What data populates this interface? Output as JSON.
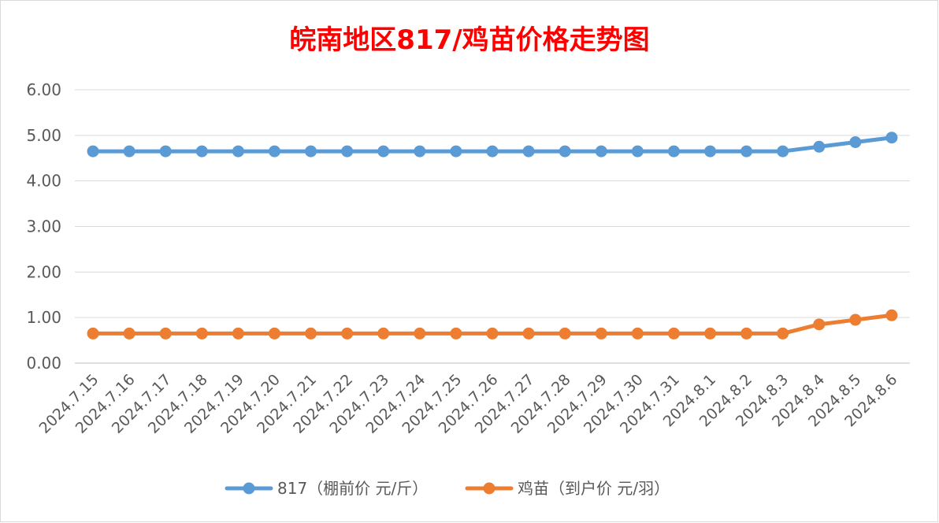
{
  "chart_data": {
    "type": "line",
    "title": "皖南地区817/鸡苗价格走势图",
    "categories": [
      "2024.7.15",
      "2024.7.16",
      "2024.7.17",
      "2024.7.18",
      "2024.7.19",
      "2024.7.20",
      "2024.7.21",
      "2024.7.22",
      "2024.7.23",
      "2024.7.24",
      "2024.7.25",
      "2024.7.26",
      "2024.7.27",
      "2024.7.28",
      "2024.7.29",
      "2024.7.30",
      "2024.7.31",
      "2024.8.1",
      "2024.8.2",
      "2024.8.3",
      "2024.8.4",
      "2024.8.5",
      "2024.8.6"
    ],
    "series": [
      {
        "name": "817（棚前价 元/斤）",
        "color": "#5B9BD5",
        "values": [
          4.65,
          4.65,
          4.65,
          4.65,
          4.65,
          4.65,
          4.65,
          4.65,
          4.65,
          4.65,
          4.65,
          4.65,
          4.65,
          4.65,
          4.65,
          4.65,
          4.65,
          4.65,
          4.65,
          4.65,
          4.75,
          4.85,
          4.95
        ]
      },
      {
        "name": "鸡苗（到户价 元/羽）",
        "color": "#ED7D31",
        "values": [
          0.65,
          0.65,
          0.65,
          0.65,
          0.65,
          0.65,
          0.65,
          0.65,
          0.65,
          0.65,
          0.65,
          0.65,
          0.65,
          0.65,
          0.65,
          0.65,
          0.65,
          0.65,
          0.65,
          0.65,
          0.85,
          0.95,
          1.05
        ]
      }
    ],
    "yticks": [
      "0.00",
      "1.00",
      "2.00",
      "3.00",
      "4.00",
      "5.00",
      "6.00"
    ],
    "ylim": [
      0,
      6
    ],
    "xlabel": "",
    "ylabel": "",
    "grid": true,
    "legend_position": "bottom",
    "title_color": "#FF0000"
  }
}
